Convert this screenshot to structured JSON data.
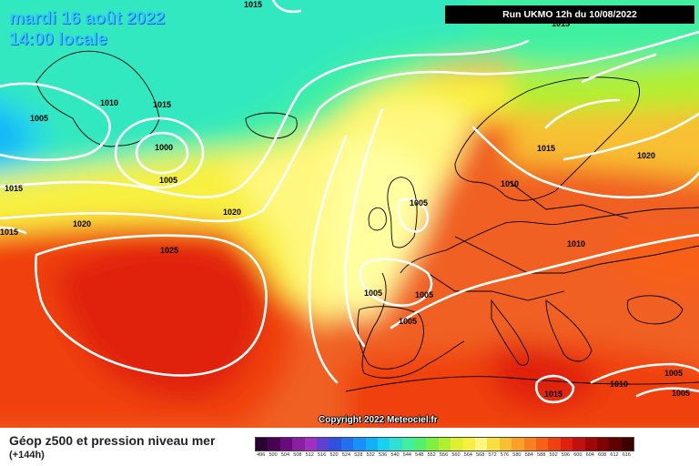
{
  "header": {
    "date": "mardi 16 août 2022",
    "time": "14:00 locale",
    "run": "Run UKMO 12h du 10/08/2022"
  },
  "copyright": "Copyright 2022 Meteociel.fr",
  "legend": {
    "title": "Géop z500 et pression niveau mer",
    "subtitle": "(+144h)",
    "scale_values": [
      "496",
      "500",
      "504",
      "508",
      "512",
      "516",
      "520",
      "524",
      "528",
      "532",
      "536",
      "540",
      "544",
      "548",
      "552",
      "556",
      "560",
      "564",
      "568",
      "572",
      "576",
      "580",
      "584",
      "588",
      "592",
      "596",
      "600",
      "604",
      "608",
      "612",
      "616"
    ],
    "scale_colors": [
      "#2a0030",
      "#4a0050",
      "#6a0a80",
      "#8a20a0",
      "#a030c0",
      "#6040d0",
      "#3050e0",
      "#2070f0",
      "#1890f8",
      "#10b0f8",
      "#18d0f0",
      "#30e0d0",
      "#40f0a0",
      "#50f070",
      "#80f040",
      "#b0f030",
      "#e0f030",
      "#f8f040",
      "#fff880",
      "#f8e040",
      "#f8c030",
      "#f8a028",
      "#f88020",
      "#f86018",
      "#f04010",
      "#e02010",
      "#c01010",
      "#a00808",
      "#800000",
      "#600000",
      "#400000"
    ]
  },
  "isobars": {
    "labels": [
      "1015",
      "1015",
      "1010",
      "1005",
      "1015",
      "1000",
      "1005",
      "1015",
      "1020",
      "1020",
      "1025",
      "1005",
      "1005",
      "1005",
      "1005",
      "1015",
      "1010",
      "1020",
      "1010",
      "1015",
      "1010",
      "1005",
      "1005",
      "1015"
    ]
  }
}
